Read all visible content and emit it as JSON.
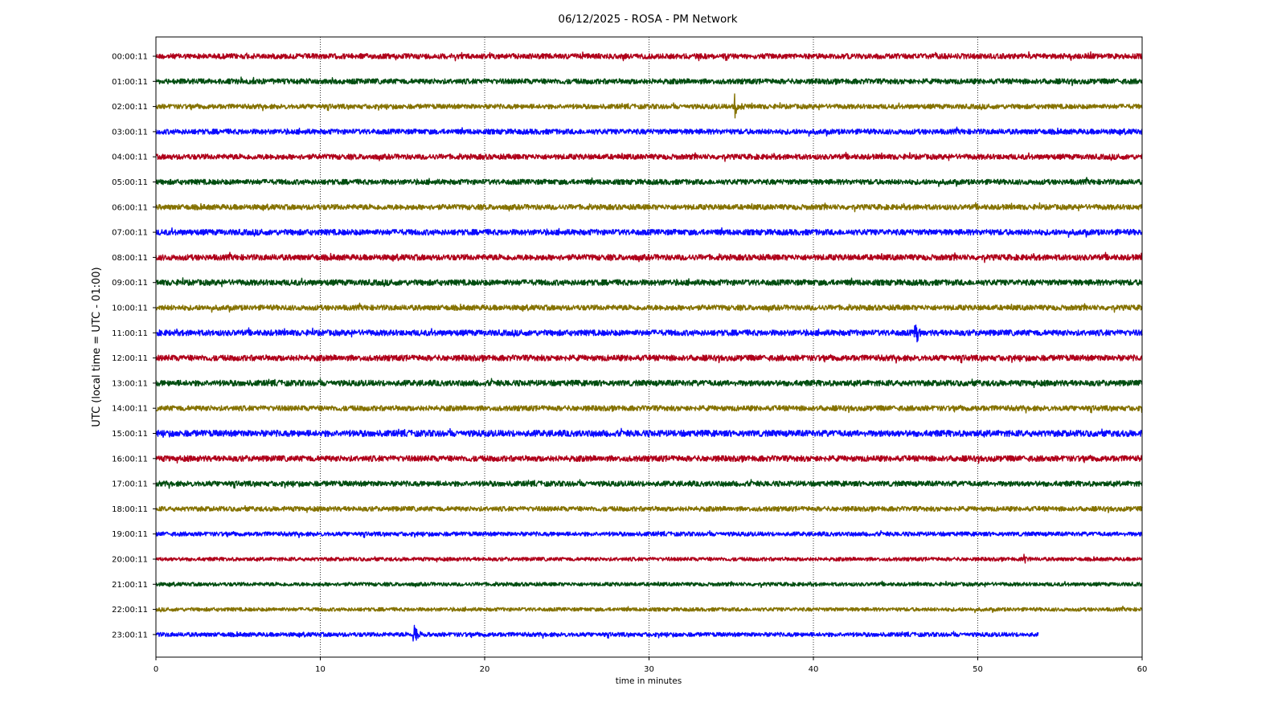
{
  "chart_data": {
    "type": "line",
    "title": "06/12/2025 - ROSA - PM Network",
    "xlabel": "time in minutes",
    "ylabel": "UTC (local time = UTC - 01:00)",
    "xlim": [
      0,
      60
    ],
    "x_ticks": [
      "0",
      "10",
      "20",
      "30",
      "40",
      "50",
      "60"
    ],
    "grid": "vertical dotted at every 10 minutes",
    "legend": "none",
    "row_colors": [
      "#b0001a",
      "#004d10",
      "#857200",
      "#0a0aff"
    ],
    "rows": [
      {
        "label": "00:00:11",
        "end_minute": 60,
        "noise": 1.0,
        "events": []
      },
      {
        "label": "01:00:11",
        "end_minute": 60,
        "noise": 1.0,
        "events": []
      },
      {
        "label": "02:00:11",
        "end_minute": 60,
        "noise": 0.9,
        "events": [
          {
            "minute": 35.2,
            "amplitude": 17
          }
        ]
      },
      {
        "label": "03:00:11",
        "end_minute": 60,
        "noise": 1.0,
        "events": []
      },
      {
        "label": "04:00:11",
        "end_minute": 60,
        "noise": 1.0,
        "events": []
      },
      {
        "label": "05:00:11",
        "end_minute": 60,
        "noise": 1.0,
        "events": []
      },
      {
        "label": "06:00:11",
        "end_minute": 60,
        "noise": 1.0,
        "events": []
      },
      {
        "label": "07:00:11",
        "end_minute": 60,
        "noise": 1.1,
        "events": []
      },
      {
        "label": "08:00:11",
        "end_minute": 60,
        "noise": 1.1,
        "events": []
      },
      {
        "label": "09:00:11",
        "end_minute": 60,
        "noise": 1.1,
        "events": []
      },
      {
        "label": "10:00:11",
        "end_minute": 60,
        "noise": 1.0,
        "events": []
      },
      {
        "label": "11:00:11",
        "end_minute": 60,
        "noise": 1.1,
        "events": [
          {
            "minute": 46.2,
            "amplitude": 15
          }
        ]
      },
      {
        "label": "12:00:11",
        "end_minute": 60,
        "noise": 1.1,
        "events": []
      },
      {
        "label": "13:00:11",
        "end_minute": 60,
        "noise": 1.1,
        "events": []
      },
      {
        "label": "14:00:11",
        "end_minute": 60,
        "noise": 1.0,
        "events": []
      },
      {
        "label": "15:00:11",
        "end_minute": 60,
        "noise": 1.2,
        "events": []
      },
      {
        "label": "16:00:11",
        "end_minute": 60,
        "noise": 1.1,
        "events": []
      },
      {
        "label": "17:00:11",
        "end_minute": 60,
        "noise": 1.0,
        "events": []
      },
      {
        "label": "18:00:11",
        "end_minute": 60,
        "noise": 0.9,
        "events": []
      },
      {
        "label": "19:00:11",
        "end_minute": 60,
        "noise": 0.8,
        "events": []
      },
      {
        "label": "20:00:11",
        "end_minute": 60,
        "noise": 0.7,
        "events": [
          {
            "minute": 52.8,
            "amplitude": 5
          }
        ]
      },
      {
        "label": "21:00:11",
        "end_minute": 60,
        "noise": 0.7,
        "events": []
      },
      {
        "label": "22:00:11",
        "end_minute": 60,
        "noise": 0.7,
        "events": []
      },
      {
        "label": "23:00:11",
        "end_minute": 53.7,
        "noise": 0.8,
        "events": [
          {
            "minute": 15.7,
            "amplitude": 18
          }
        ]
      }
    ]
  }
}
